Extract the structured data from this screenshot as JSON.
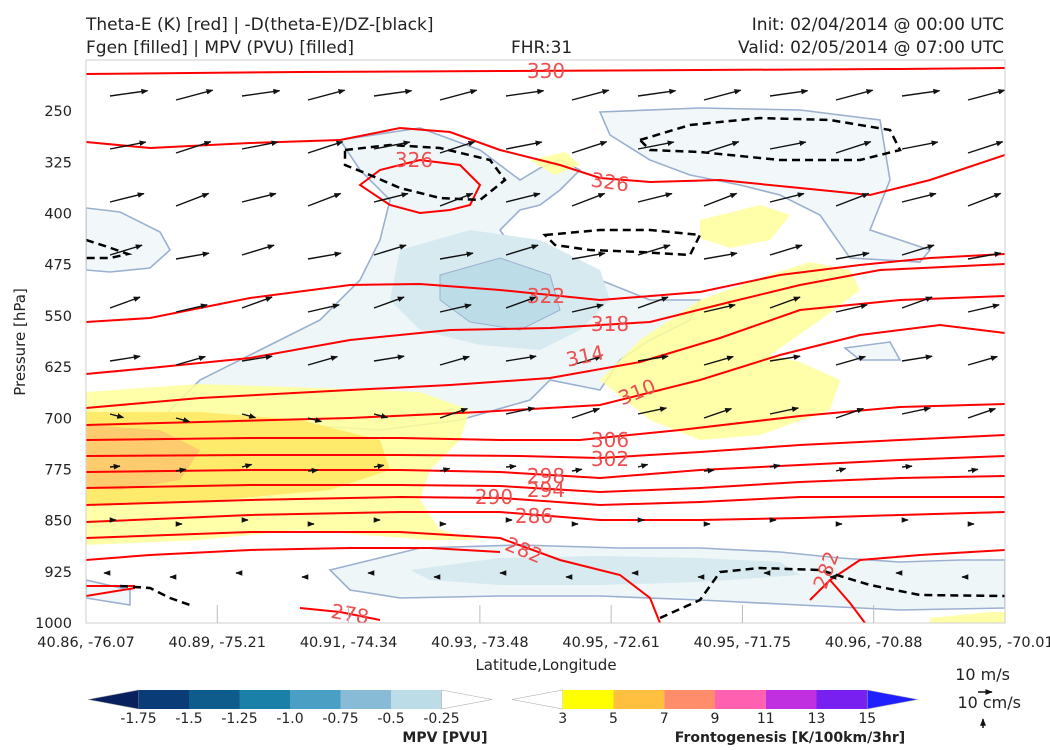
{
  "header": {
    "line1_left": "Theta-E (K) [red] | -D(theta-E)/DZ-[black]",
    "line2_left": "Fgen [filled] | MPV (PVU) [filled]",
    "fhr": "FHR:31",
    "init": "Init: 02/04/2014 @ 00:00 UTC",
    "valid": "Valid: 02/05/2014 @ 07:00 UTC"
  },
  "chart_data": {
    "type": "cross-section",
    "xlabel": "Latitude,Longitude",
    "ylabel": "Pressure [hPa]",
    "x_ticks": [
      "40.86, -76.07",
      "40.89, -75.21",
      "40.91, -74.34",
      "40.93, -73.48",
      "40.95, -72.61",
      "40.95, -71.75",
      "40.96, -70.88",
      "40.95, -70.01"
    ],
    "y_ticks": [
      250,
      325,
      400,
      475,
      550,
      625,
      700,
      775,
      850,
      925,
      1000
    ],
    "ylim": [
      1000,
      175
    ],
    "theta_e_contour_labels": [
      330,
      326,
      326,
      322,
      318,
      314,
      310,
      306,
      302,
      298,
      294,
      290,
      286,
      282,
      282,
      278
    ],
    "theta_e_color": "#ff0000",
    "mpv_colorbar": {
      "title": "MPV [PVU]",
      "ticks": [
        "-1.75",
        "-1.5",
        "-1.25",
        "-1.0",
        "-0.75",
        "-0.5",
        "-0.25"
      ],
      "colors": [
        "#08205e",
        "#0a3c78",
        "#0d5c8c",
        "#1a80a8",
        "#4aa0c4",
        "#88bcd6",
        "#bcdce8",
        "#ffffff"
      ]
    },
    "fgen_colorbar": {
      "title": "Frontogenesis [K/100km/3hr]",
      "ticks": [
        "3",
        "5",
        "7",
        "9",
        "11",
        "13",
        "15"
      ],
      "colors": [
        "#ffffff",
        "#ffff00",
        "#ffc040",
        "#ff8c6a",
        "#ff60b0",
        "#c030e0",
        "#7820f0",
        "#2020ff"
      ]
    },
    "wind_key": {
      "horizontal": "10 m/s",
      "vertical": "10 cm/s"
    }
  }
}
